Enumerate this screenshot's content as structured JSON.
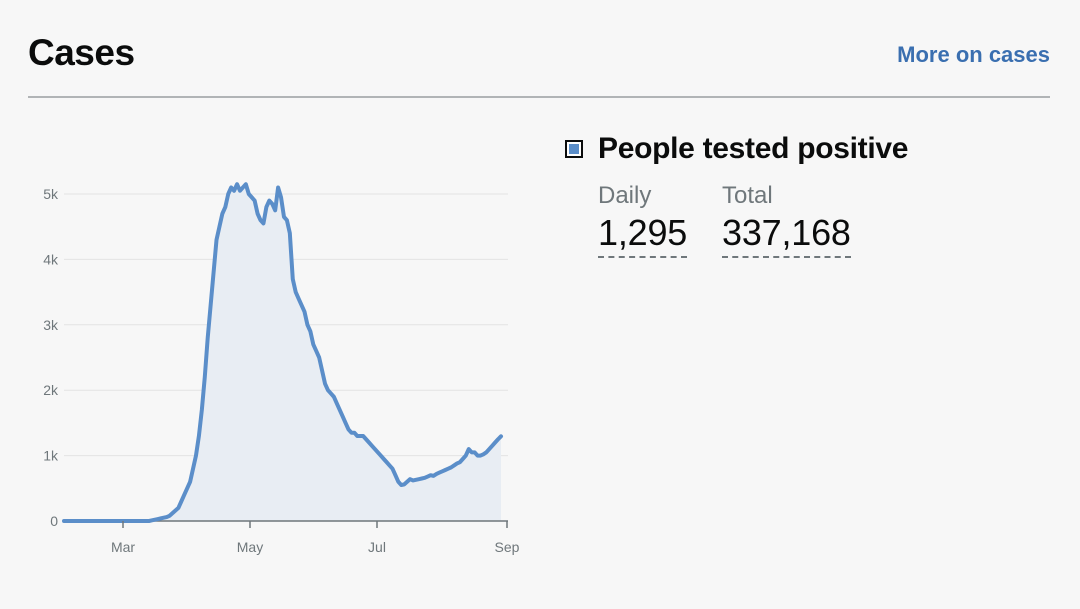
{
  "header": {
    "title": "Cases",
    "more_link": "More on cases"
  },
  "metric": {
    "title": "People tested positive",
    "daily_label": "Daily",
    "daily_value": "1,295",
    "total_label": "Total",
    "total_value": "337,168",
    "swatch_color": "#5b8ec9"
  },
  "chart_data": {
    "type": "area",
    "y_ticks": [
      0,
      1000,
      2000,
      3000,
      4000,
      5000
    ],
    "y_tick_labels": [
      "0",
      "1k",
      "2k",
      "3k",
      "4k",
      "5k"
    ],
    "x_ticks": [
      "Mar",
      "May",
      "Jul",
      "Sep"
    ],
    "ylim": [
      0,
      5500
    ],
    "grid": true,
    "line_color": "#5b8ec9",
    "fill_color": "#e8edf3",
    "series": [
      {
        "values": [
          0,
          0,
          0,
          0,
          0,
          0,
          0,
          0,
          0,
          0,
          0,
          0,
          0,
          0,
          0,
          0,
          0,
          0,
          0,
          0,
          0,
          0,
          0,
          0,
          0,
          0,
          0,
          0,
          0,
          0,
          10,
          20,
          30,
          40,
          50,
          60,
          80,
          120,
          160,
          200,
          300,
          400,
          500,
          600,
          800,
          1000,
          1300,
          1700,
          2200,
          2800,
          3300,
          3800,
          4300,
          4500,
          4700,
          4800,
          5000,
          5100,
          5050,
          5150,
          5050,
          5100,
          5150,
          5000,
          4950,
          4900,
          4700,
          4600,
          4550,
          4800,
          4900,
          4850,
          4750,
          5100,
          4950,
          4650,
          4600,
          4400,
          3700,
          3500,
          3400,
          3300,
          3200,
          3000,
          2900,
          2700,
          2600,
          2500,
          2300,
          2100,
          2000,
          1950,
          1900,
          1800,
          1700,
          1600,
          1500,
          1400,
          1350,
          1350,
          1300,
          1300,
          1300,
          1250,
          1200,
          1150,
          1100,
          1050,
          1000,
          950,
          900,
          850,
          800,
          700,
          600,
          550,
          560,
          600,
          640,
          620,
          630,
          640,
          650,
          660,
          680,
          700,
          690,
          720,
          740,
          760,
          780,
          800,
          820,
          850,
          880,
          900,
          950,
          1000,
          1100,
          1050,
          1050,
          1000,
          1000,
          1020,
          1050,
          1100,
          1150,
          1200,
          1250,
          1295
        ]
      }
    ]
  }
}
